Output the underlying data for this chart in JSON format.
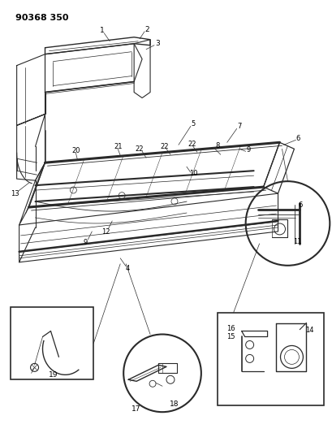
{
  "title_code": "90368 350",
  "bg": "#ffffff",
  "lc": "#2a2a2a",
  "fig_w": 4.09,
  "fig_h": 5.33,
  "dpi": 100
}
